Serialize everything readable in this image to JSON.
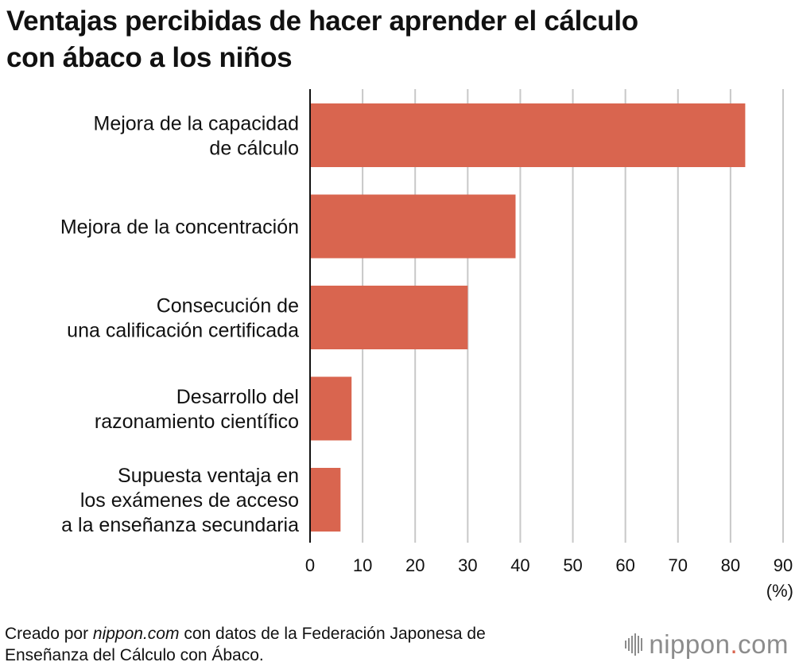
{
  "title_line1": "Ventajas percibidas de hacer aprender el cálculo",
  "title_line2": "con ábaco a los niños",
  "chart_data": {
    "type": "bar",
    "orientation": "horizontal",
    "categories": [
      [
        "Mejora de la capacidad",
        "de cálculo"
      ],
      [
        "Mejora de la concentración"
      ],
      [
        "Consecución de",
        "una calificación certificada"
      ],
      [
        "Desarrollo del",
        "razonamiento científico"
      ],
      [
        "Supuesta ventaja en",
        "los exámenes de acceso",
        "a la enseñanza secundaria"
      ]
    ],
    "values": [
      82.8,
      39.1,
      30.0,
      7.9,
      5.8
    ],
    "xlim": [
      0,
      90
    ],
    "ticks": [
      0,
      10,
      20,
      30,
      40,
      50,
      60,
      70,
      80,
      90
    ],
    "unit": "(%)",
    "bar_color": "#d9654f",
    "grid": true
  },
  "footer": {
    "prefix": "Creado por ",
    "source_site": "nippon.com",
    "rest": " con datos de la Federación Japonesa de",
    "line2": "Enseñanza del Cálculo con Ábaco."
  },
  "logo": {
    "name": "nippon",
    "dot": ".",
    "tld": "com",
    "color": "#8c8c8c",
    "accent": "#d9654f"
  }
}
